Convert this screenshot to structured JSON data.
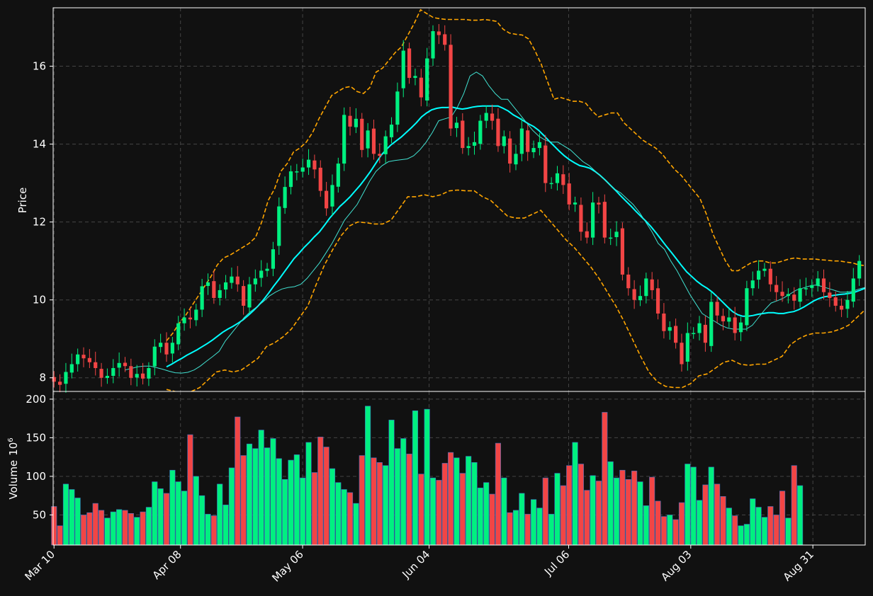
{
  "chart_data": [
    {
      "type": "candlestick",
      "panel": "price",
      "ylabel": "Price",
      "ylim": [
        7.65,
        17.5
      ],
      "yticks": [
        8,
        10,
        12,
        14,
        16
      ],
      "xlim_days": [
        -0.2,
        186
      ],
      "x_tick_labels": [
        {
          "label": "Mar 10",
          "day": 0
        },
        {
          "label": "Apr 08",
          "day": 29
        },
        {
          "label": "May 06",
          "day": 57
        },
        {
          "label": "Jun 04",
          "day": 86
        },
        {
          "label": "Jul 06",
          "day": 118
        },
        {
          "label": "Aug 03",
          "day": 146
        },
        {
          "label": "Aug 31",
          "day": 174
        }
      ],
      "grid": true,
      "colors": {
        "up": "#00f080",
        "down": "#f24545",
        "ma_short": "#40e0d0",
        "ma_long": "#00ffff",
        "band": "#ffa500",
        "background": "#111111",
        "grid": "#444444"
      },
      "close": [
        7.9,
        7.82,
        8.15,
        8.35,
        8.6,
        8.5,
        8.4,
        8.25,
        8.0,
        8.05,
        8.25,
        8.38,
        8.3,
        8.0,
        8.1,
        7.98,
        8.25,
        8.8,
        8.9,
        8.6,
        8.9,
        9.4,
        9.55,
        9.5,
        9.75,
        10.35,
        10.45,
        10.05,
        10.25,
        10.45,
        10.6,
        10.4,
        9.85,
        10.4,
        10.55,
        10.75,
        10.8,
        11.3,
        12.4,
        12.9,
        13.3,
        13.3,
        13.4,
        13.6,
        13.35,
        12.8,
        12.35,
        12.95,
        13.5,
        14.75,
        14.45,
        14.65,
        13.85,
        14.35,
        13.75,
        13.7,
        14.2,
        14.5,
        15.35,
        16.4,
        15.7,
        15.75,
        15.2,
        16.2,
        16.9,
        16.8,
        16.55,
        14.4,
        14.55,
        13.9,
        13.95,
        14.05,
        14.6,
        14.8,
        14.6,
        13.95,
        14.2,
        13.5,
        13.75,
        14.4,
        13.8,
        13.9,
        14.05,
        13.0,
        13.0,
        13.25,
        12.95,
        12.45,
        12.5,
        11.75,
        11.6,
        12.5,
        12.45,
        11.6,
        11.6,
        11.75,
        10.65,
        10.3,
        10.0,
        10.1,
        10.55,
        10.25,
        9.65,
        9.2,
        9.3,
        8.9,
        8.35,
        9.15,
        9.15,
        9.4,
        8.9,
        9.95,
        9.6,
        9.45,
        9.55,
        9.15,
        9.42,
        10.3,
        10.5,
        10.75,
        10.8,
        10.4,
        10.2,
        10.1,
        10.15,
        9.98,
        10.3,
        10.3,
        10.38,
        10.55,
        10.2,
        10.05,
        9.85,
        9.75,
        10.0,
        10.55,
        11.0
      ],
      "ma_short": [
        8.2,
        8.24,
        8.28,
        8.3,
        8.3,
        8.26,
        8.22,
        8.17,
        8.13,
        8.12,
        8.14,
        8.2,
        8.3,
        8.43,
        8.55,
        8.68,
        8.95,
        9.15,
        9.35,
        9.55,
        9.7,
        9.82,
        9.95,
        10.1,
        10.2,
        10.28,
        10.32,
        10.34,
        10.4,
        10.55,
        10.75,
        10.95,
        11.2,
        11.45,
        11.75,
        12.05,
        12.25,
        12.45,
        12.75,
        13.05,
        13.3,
        13.45,
        13.55,
        13.58,
        13.6,
        13.62,
        13.7,
        13.85,
        14.05,
        14.3,
        14.6,
        14.65,
        14.7,
        14.95,
        15.3,
        15.75,
        15.85,
        15.75,
        15.5,
        15.3,
        15.15,
        15.15,
        14.95,
        14.75,
        14.55,
        14.35,
        14.2,
        14.1,
        14.05,
        14.05,
        13.95,
        13.85,
        13.7,
        13.55,
        13.45,
        13.3,
        13.15,
        13.0,
        12.85,
        12.75,
        12.6,
        12.45,
        12.25,
        12.0,
        11.75,
        11.45,
        11.3,
        11.0,
        10.75,
        10.45,
        10.15,
        9.9,
        9.65,
        9.55,
        9.45,
        9.35,
        9.28,
        9.25,
        9.25,
        9.25,
        9.35,
        9.55,
        9.75,
        9.92,
        9.98,
        10.05,
        10.15,
        10.25,
        10.3,
        10.35,
        10.38,
        10.35,
        10.3,
        10.25,
        10.2,
        10.2,
        10.22,
        10.28,
        10.32
      ],
      "ma_long": [
        8.28,
        8.35,
        8.43,
        8.5,
        8.58,
        8.65,
        8.72,
        8.8,
        8.88,
        8.97,
        9.07,
        9.17,
        9.25,
        9.32,
        9.4,
        9.49,
        9.6,
        9.72,
        9.85,
        10.0,
        10.17,
        10.35,
        10.52,
        10.7,
        10.88,
        11.06,
        11.2,
        11.35,
        11.48,
        11.62,
        11.75,
        11.92,
        12.1,
        12.25,
        12.4,
        12.52,
        12.65,
        12.8,
        12.95,
        13.12,
        13.3,
        13.5,
        13.7,
        13.85,
        13.98,
        14.08,
        14.18,
        14.3,
        14.42,
        14.55,
        14.7,
        14.8,
        14.88,
        14.92,
        14.94,
        14.94,
        14.95,
        14.92,
        14.9,
        14.92,
        14.95,
        14.97,
        14.98,
        14.98,
        14.98,
        14.98,
        14.92,
        14.85,
        14.75,
        14.68,
        14.6,
        14.52,
        14.45,
        14.35,
        14.22,
        14.08,
        13.95,
        13.82,
        13.7,
        13.6,
        13.52,
        13.45,
        13.42,
        13.38,
        13.3,
        13.2,
        13.08,
        12.95,
        12.82,
        12.68,
        12.55,
        12.42,
        12.28,
        12.15,
        12.02,
        11.88,
        11.72,
        11.55,
        11.38,
        11.22,
        11.05,
        10.88,
        10.72,
        10.6,
        10.48,
        10.38,
        10.3,
        10.2,
        10.08,
        9.95,
        9.82,
        9.7,
        9.62,
        9.58,
        9.58,
        9.6,
        9.63,
        9.65,
        9.67,
        9.67,
        9.65,
        9.65,
        9.68,
        9.7,
        9.75,
        9.82,
        9.9,
        9.98,
        10.04,
        10.08,
        10.1,
        10.12,
        10.14,
        10.15,
        10.17,
        10.2,
        10.25,
        10.3
      ],
      "band_upper": [
        8.95,
        9.15,
        9.4,
        9.6,
        9.85,
        10.1,
        10.35,
        10.6,
        10.9,
        11.08,
        11.15,
        11.25,
        11.35,
        11.45,
        11.6,
        12.0,
        12.55,
        12.85,
        13.3,
        13.5,
        13.8,
        13.9,
        14.05,
        14.3,
        14.65,
        14.95,
        15.25,
        15.35,
        15.45,
        15.48,
        15.35,
        15.3,
        15.45,
        15.85,
        15.95,
        16.15,
        16.35,
        16.5,
        16.8,
        17.1,
        17.45,
        17.35,
        17.25,
        17.22,
        17.2,
        17.2,
        17.2,
        17.2,
        17.18,
        17.18,
        17.2,
        17.18,
        17.15,
        16.95,
        16.85,
        16.82,
        16.8,
        16.7,
        16.4,
        16.05,
        15.6,
        15.15,
        15.2,
        15.15,
        15.1,
        15.1,
        15.05,
        14.85,
        14.7,
        14.75,
        14.8,
        14.8,
        14.55,
        14.4,
        14.25,
        14.1,
        14.0,
        13.9,
        13.75,
        13.55,
        13.35,
        13.2,
        13.0,
        12.8,
        12.6,
        12.2,
        11.7,
        11.35,
        11.0,
        10.75,
        10.75,
        10.85,
        10.95,
        11.0,
        11.0,
        10.95,
        10.95,
        11.0,
        11.05,
        11.08,
        11.05,
        11.05,
        11.05,
        11.03,
        11.02,
        11.0,
        11.0,
        10.97,
        10.95,
        10.9,
        10.88
      ],
      "band_lower": [
        7.7,
        7.65,
        7.6,
        7.65,
        7.75,
        7.95,
        8.15,
        8.2,
        8.15,
        8.2,
        8.35,
        8.5,
        8.8,
        8.9,
        9.05,
        9.25,
        9.55,
        9.85,
        10.4,
        10.9,
        11.3,
        11.65,
        11.9,
        12.0,
        11.98,
        11.95,
        11.95,
        12.05,
        12.35,
        12.65,
        12.65,
        12.7,
        12.65,
        12.7,
        12.8,
        12.82,
        12.8,
        12.8,
        12.65,
        12.55,
        12.35,
        12.15,
        12.1,
        12.1,
        12.2,
        12.3,
        12.05,
        11.8,
        11.55,
        11.35,
        11.1,
        10.85,
        10.55,
        10.2,
        9.85,
        9.45,
        9.0,
        8.55,
        8.15,
        7.9,
        7.78,
        7.75,
        7.75,
        7.85,
        8.05,
        8.1,
        8.25,
        8.4,
        8.45,
        8.35,
        8.32,
        8.35,
        8.35,
        8.45,
        8.55,
        8.85,
        9.0,
        9.1,
        9.15,
        9.15,
        9.18,
        9.25,
        9.35,
        9.55,
        9.75
      ]
    },
    {
      "type": "bar",
      "panel": "volume",
      "ylabel": "Volume",
      "ylabel_exponent": "6",
      "ylim": [
        11,
        210
      ],
      "yticks": [
        50,
        100,
        150,
        200
      ],
      "grid": true,
      "values": [
        61,
        36,
        90,
        83,
        72,
        50,
        53,
        65,
        56,
        46,
        54,
        57,
        56,
        52,
        47,
        54,
        60,
        93,
        84,
        78,
        108,
        93,
        81,
        154,
        100,
        75,
        51,
        49,
        90,
        63,
        111,
        177,
        127,
        142,
        136,
        160,
        137,
        149,
        123,
        96,
        121,
        128,
        98,
        144,
        105,
        151,
        138,
        110,
        92,
        83,
        79,
        65,
        127,
        191,
        124,
        118,
        114,
        173,
        136,
        149,
        129,
        185,
        103,
        187,
        98,
        95,
        117,
        131,
        124,
        104,
        126,
        118,
        85,
        92,
        77,
        143,
        98,
        53,
        56,
        78,
        51,
        70,
        59,
        98,
        51,
        104,
        88,
        114,
        144,
        116,
        82,
        101,
        94,
        183,
        119,
        98,
        108,
        96,
        107,
        93,
        62,
        99,
        68,
        48,
        50,
        44,
        66,
        116,
        112,
        69,
        89,
        112,
        90,
        74,
        59,
        49,
        36,
        38,
        71,
        60,
        47,
        61,
        50,
        81,
        46,
        114,
        88
      ]
    }
  ]
}
